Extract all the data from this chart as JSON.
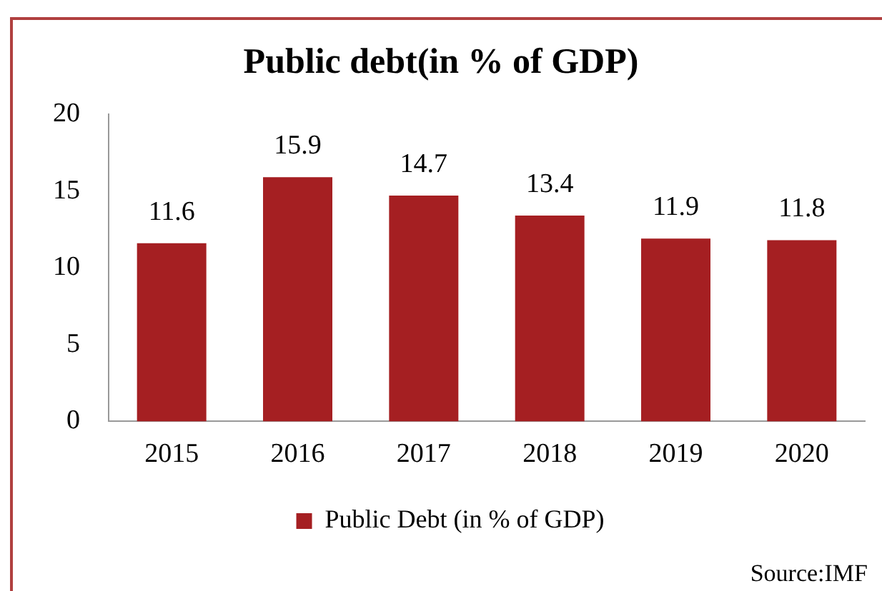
{
  "chart_data": {
    "type": "bar",
    "title": "Public debt(in % of GDP)",
    "categories": [
      "2015",
      "2016",
      "2017",
      "2018",
      "2019",
      "2020"
    ],
    "series": [
      {
        "name": "Public Debt (in % of GDP)",
        "color": "#a51f22",
        "values": [
          11.6,
          15.9,
          14.7,
          13.4,
          11.9,
          11.8
        ]
      }
    ],
    "ylim": [
      0,
      20
    ],
    "yticks": [
      0,
      5,
      10,
      15,
      20
    ],
    "grid": false,
    "legend": "bottom",
    "data_labels": true,
    "annotations": [
      "Source:IMF"
    ]
  }
}
